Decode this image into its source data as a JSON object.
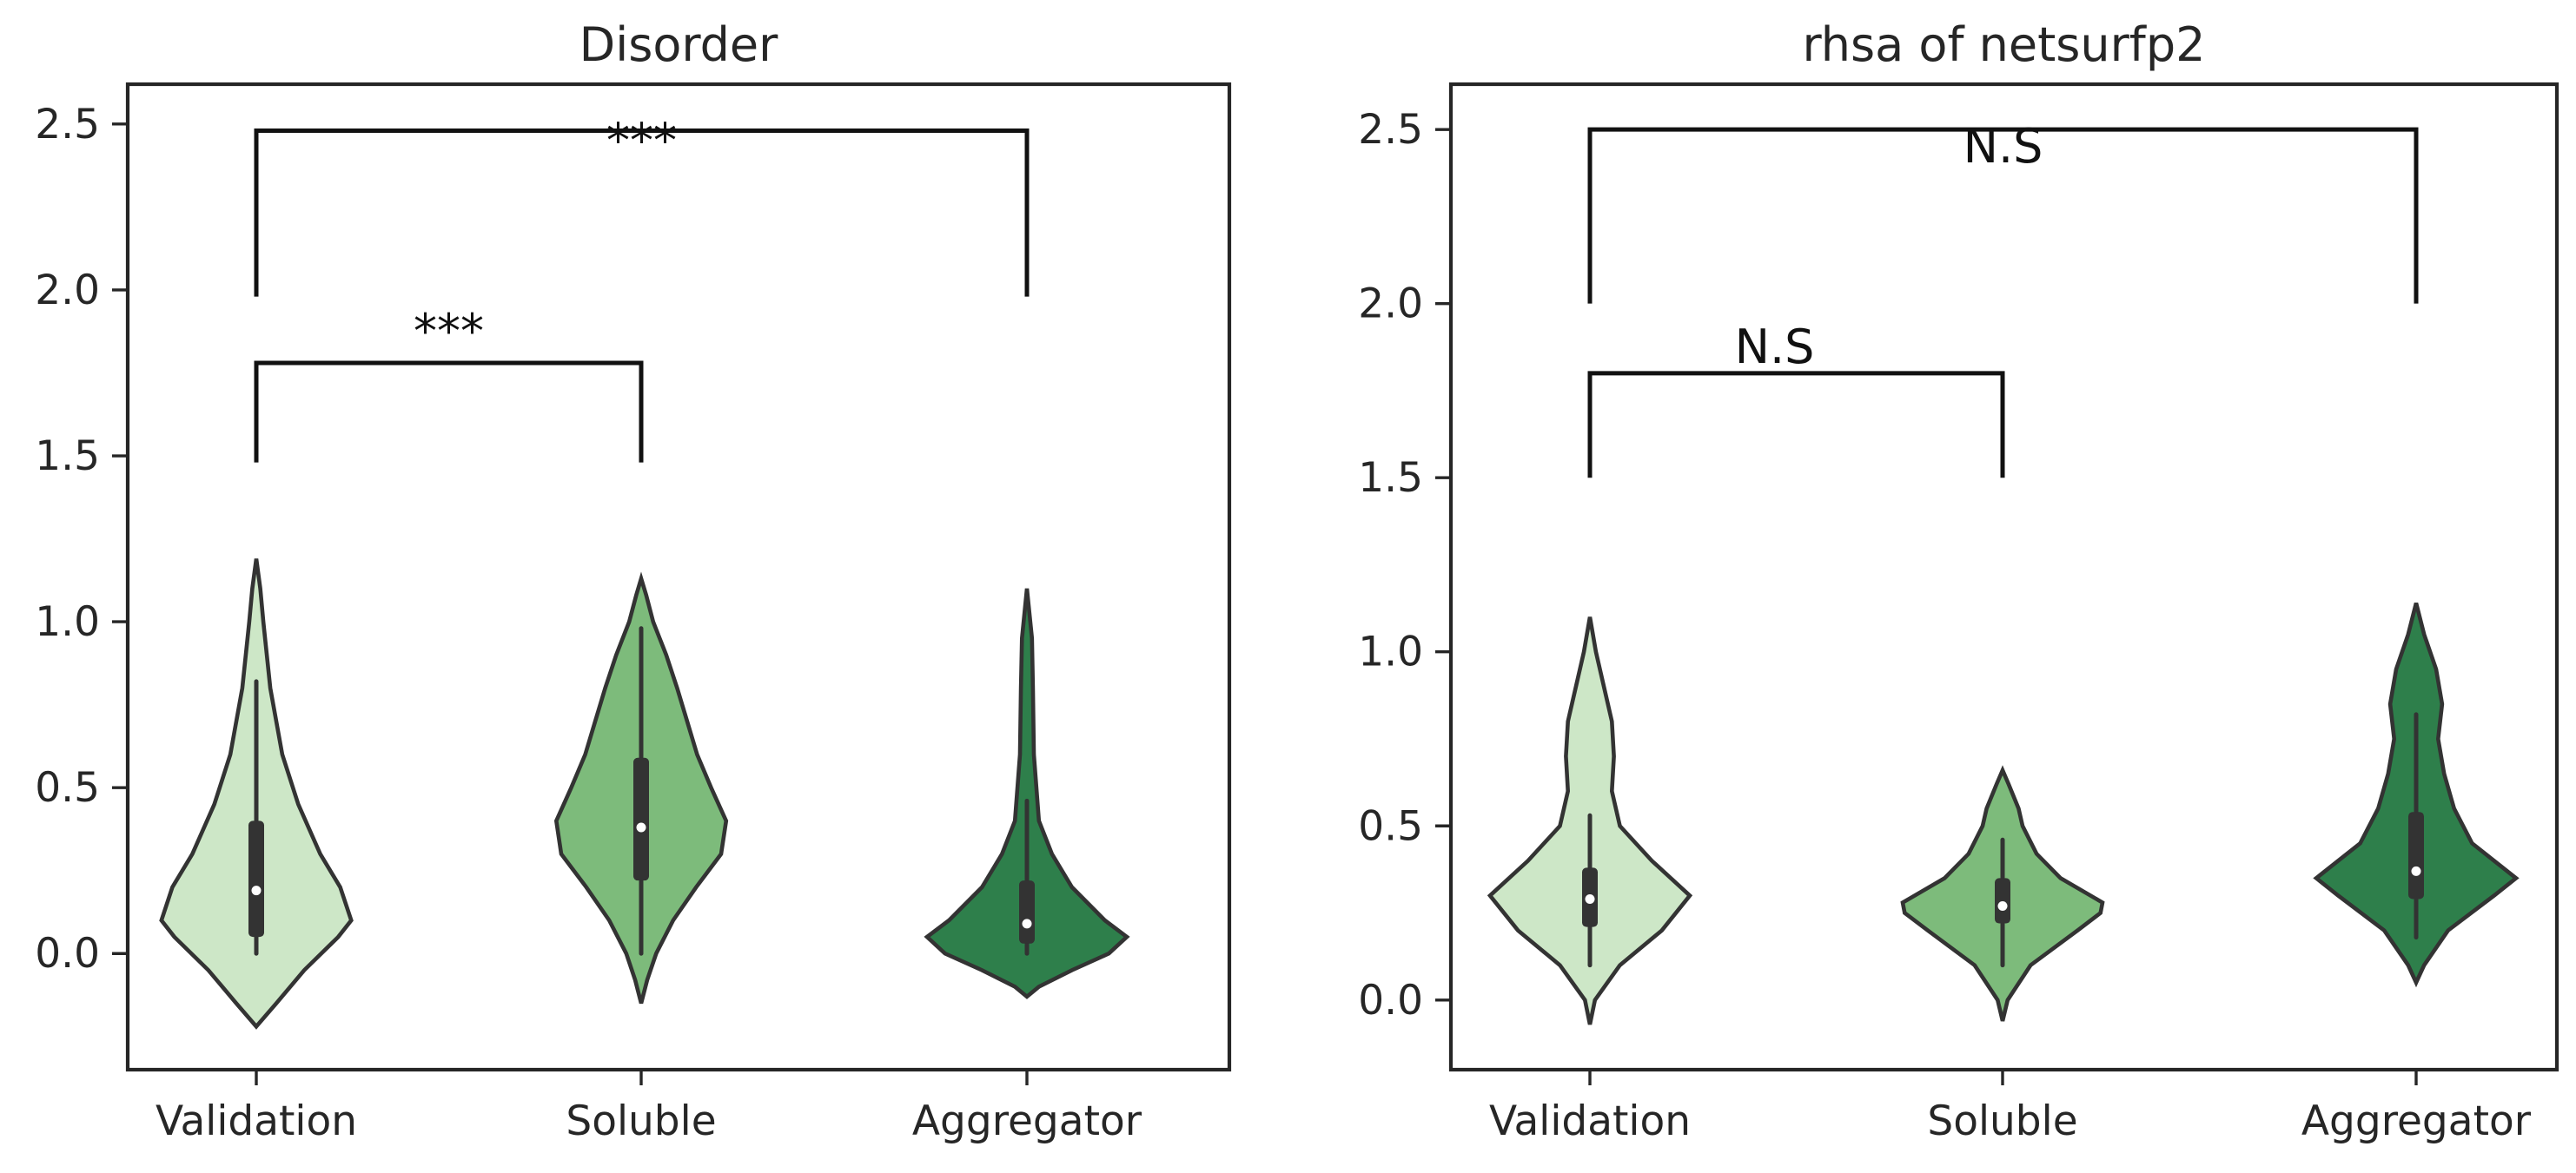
{
  "chart_data": [
    {
      "type": "violin",
      "title": "Disorder",
      "categories": [
        "Validation",
        "Soluble",
        "Aggregator"
      ],
      "colors": [
        "#cde7c7",
        "#7dbb7b",
        "#2e7f4b"
      ],
      "ylim": [
        -0.35,
        2.62
      ],
      "yticks": [
        0.0,
        0.5,
        1.0,
        1.5,
        2.0,
        2.5
      ],
      "ytick_labels": [
        "0.0",
        "0.5",
        "1.0",
        "1.5",
        "2.0",
        "2.5"
      ],
      "series": [
        {
          "category": "Validation",
          "summary": {
            "min": 0.0,
            "q1": 0.05,
            "median": 0.19,
            "q3": 0.4,
            "max": 0.82
          },
          "range": [
            -0.22,
            1.19
          ],
          "density": [
            [
              -0.22,
              0.0
            ],
            [
              -0.15,
              0.2
            ],
            [
              -0.05,
              0.48
            ],
            [
              0.05,
              0.82
            ],
            [
              0.1,
              0.95
            ],
            [
              0.2,
              0.84
            ],
            [
              0.3,
              0.64
            ],
            [
              0.45,
              0.42
            ],
            [
              0.6,
              0.26
            ],
            [
              0.8,
              0.14
            ],
            [
              1.0,
              0.07
            ],
            [
              1.1,
              0.04
            ],
            [
              1.19,
              0.0
            ]
          ]
        },
        {
          "category": "Soluble",
          "summary": {
            "min": 0.0,
            "q1": 0.22,
            "median": 0.38,
            "q3": 0.59,
            "max": 0.98
          },
          "range": [
            -0.15,
            1.13
          ],
          "density": [
            [
              -0.15,
              0.0
            ],
            [
              -0.08,
              0.06
            ],
            [
              0.0,
              0.15
            ],
            [
              0.1,
              0.32
            ],
            [
              0.2,
              0.55
            ],
            [
              0.3,
              0.8
            ],
            [
              0.4,
              0.85
            ],
            [
              0.5,
              0.7
            ],
            [
              0.6,
              0.56
            ],
            [
              0.7,
              0.46
            ],
            [
              0.8,
              0.36
            ],
            [
              0.9,
              0.25
            ],
            [
              1.0,
              0.12
            ],
            [
              1.08,
              0.05
            ],
            [
              1.13,
              0.0
            ]
          ]
        },
        {
          "category": "Aggregator",
          "summary": {
            "min": 0.0,
            "q1": 0.03,
            "median": 0.09,
            "q3": 0.22,
            "max": 0.46
          },
          "range": [
            -0.13,
            1.1
          ],
          "density": [
            [
              -0.13,
              0.0
            ],
            [
              -0.1,
              0.12
            ],
            [
              -0.05,
              0.45
            ],
            [
              0.0,
              0.82
            ],
            [
              0.05,
              1.0
            ],
            [
              0.1,
              0.78
            ],
            [
              0.2,
              0.45
            ],
            [
              0.3,
              0.25
            ],
            [
              0.4,
              0.12
            ],
            [
              0.6,
              0.07
            ],
            [
              0.8,
              0.06
            ],
            [
              0.95,
              0.05
            ],
            [
              1.1,
              0.0
            ]
          ]
        }
      ],
      "significance": [
        {
          "pair": [
            "Validation",
            "Soluble"
          ],
          "label": "***",
          "y": 1.78,
          "drop_to": 1.48
        },
        {
          "pair": [
            "Validation",
            "Aggregator"
          ],
          "label": "***",
          "y": 2.48,
          "drop_to": 1.98
        }
      ]
    },
    {
      "type": "violin",
      "title": "rhsa of netsurfp2",
      "categories": [
        "Validation",
        "Soluble",
        "Aggregator"
      ],
      "colors": [
        "#cde7c7",
        "#7dbb7b",
        "#2e7f4b"
      ],
      "ylim": [
        -0.2,
        2.63
      ],
      "yticks": [
        0.0,
        0.5,
        1.0,
        1.5,
        2.0,
        2.5
      ],
      "ytick_labels": [
        "0.0",
        "0.5",
        "1.0",
        "1.5",
        "2.0",
        "2.5"
      ],
      "series": [
        {
          "category": "Validation",
          "summary": {
            "min": 0.1,
            "q1": 0.21,
            "median": 0.29,
            "q3": 0.38,
            "max": 0.53
          },
          "range": [
            -0.07,
            1.1
          ],
          "density": [
            [
              -0.07,
              0.0
            ],
            [
              0.0,
              0.05
            ],
            [
              0.1,
              0.3
            ],
            [
              0.2,
              0.72
            ],
            [
              0.3,
              1.0
            ],
            [
              0.4,
              0.62
            ],
            [
              0.5,
              0.3
            ],
            [
              0.6,
              0.22
            ],
            [
              0.7,
              0.24
            ],
            [
              0.8,
              0.22
            ],
            [
              0.9,
              0.14
            ],
            [
              1.0,
              0.06
            ],
            [
              1.1,
              0.0
            ]
          ]
        },
        {
          "category": "Soluble",
          "summary": {
            "min": 0.1,
            "q1": 0.22,
            "median": 0.27,
            "q3": 0.35,
            "max": 0.46
          },
          "range": [
            -0.06,
            0.66
          ],
          "density": [
            [
              -0.06,
              0.0
            ],
            [
              0.0,
              0.05
            ],
            [
              0.1,
              0.28
            ],
            [
              0.2,
              0.75
            ],
            [
              0.25,
              0.98
            ],
            [
              0.28,
              1.0
            ],
            [
              0.35,
              0.58
            ],
            [
              0.42,
              0.34
            ],
            [
              0.5,
              0.2
            ],
            [
              0.55,
              0.16
            ],
            [
              0.62,
              0.06
            ],
            [
              0.66,
              0.0
            ]
          ]
        },
        {
          "category": "Aggregator",
          "summary": {
            "min": 0.18,
            "q1": 0.29,
            "median": 0.37,
            "q3": 0.54,
            "max": 0.82
          },
          "range": [
            0.05,
            1.14
          ],
          "density": [
            [
              0.05,
              0.0
            ],
            [
              0.1,
              0.08
            ],
            [
              0.2,
              0.32
            ],
            [
              0.3,
              0.78
            ],
            [
              0.35,
              1.0
            ],
            [
              0.45,
              0.56
            ],
            [
              0.55,
              0.38
            ],
            [
              0.65,
              0.28
            ],
            [
              0.75,
              0.22
            ],
            [
              0.85,
              0.26
            ],
            [
              0.95,
              0.2
            ],
            [
              1.05,
              0.08
            ],
            [
              1.14,
              0.0
            ]
          ]
        }
      ],
      "significance": [
        {
          "pair": [
            "Validation",
            "Soluble"
          ],
          "label": "N.S",
          "y": 1.8,
          "drop_to": 1.5
        },
        {
          "pair": [
            "Validation",
            "Aggregator"
          ],
          "label": "N.S",
          "y": 2.5,
          "drop_to": 2.0
        }
      ]
    }
  ]
}
